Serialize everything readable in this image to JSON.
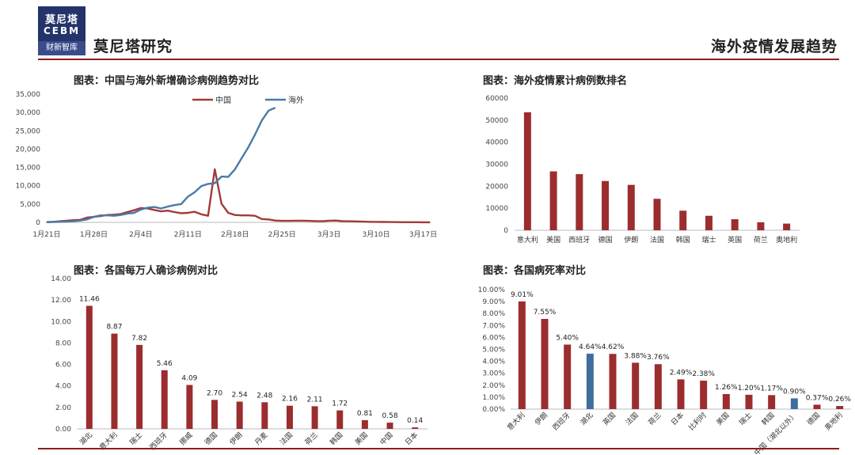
{
  "header": {
    "logo_line1": "莫尼塔",
    "logo_line2": "CEBM",
    "logo_line3": "财新智库",
    "brand": "莫尼塔研究",
    "page_title": "海外疫情发展趋势"
  },
  "colors": {
    "accent": "#8b1e1e",
    "bar": "#9b2d2f",
    "blue": "#3f6e9e",
    "logo_bg": "#24346a"
  },
  "chart_data": [
    {
      "type": "line",
      "title": "图表：中国与海外新增确诊病例趋势对比",
      "ylim": [
        0,
        35000
      ],
      "yticks": [
        "0",
        "5,000",
        "10,000",
        "15,000",
        "20,000",
        "25,000",
        "30,000",
        "35,000"
      ],
      "x_labels": [
        "1月21日",
        "1月28日",
        "2月4日",
        "2月11日",
        "2月18日",
        "2月25日",
        "3月3日",
        "3月10日",
        "3月17日"
      ],
      "series": [
        {
          "name": "中国",
          "color": "#a23a3a",
          "values": [
            80,
            150,
            300,
            450,
            600,
            700,
            1300,
            1500,
            1700,
            2000,
            2100,
            2300,
            2800,
            3300,
            3900,
            3800,
            3400,
            3000,
            3200,
            2800,
            2500,
            2600,
            2900,
            2200,
            1800,
            14500,
            5100,
            2600,
            2000,
            1900,
            1900,
            1800,
            900,
            800,
            500,
            400,
            400,
            450,
            450,
            400,
            350,
            300,
            450,
            500,
            350,
            300,
            250,
            200,
            150,
            120,
            100,
            80,
            60,
            40,
            50,
            40,
            30,
            30
          ]
        },
        {
          "name": "海外",
          "color": "#4a7aa8",
          "values": [
            50,
            100,
            150,
            200,
            300,
            500,
            800,
            1500,
            1900,
            1900,
            1800,
            2000,
            2400,
            2600,
            3500,
            4000,
            4200,
            3800,
            4300,
            4700,
            5000,
            7000,
            8200,
            9900,
            10500,
            10700,
            12500,
            12400,
            14500,
            17500,
            20500,
            24000,
            27800,
            30500,
            31300
          ]
        }
      ]
    },
    {
      "type": "bar",
      "title": "图表：海外疫情累计病例数排名",
      "categories": [
        "意大利",
        "美国",
        "西班牙",
        "德国",
        "伊朗",
        "法国",
        "韩国",
        "瑞士",
        "英国",
        "荷兰",
        "奥地利"
      ],
      "values": [
        53578,
        26747,
        25496,
        22364,
        20610,
        14296,
        8897,
        6575,
        5018,
        3631,
        3024
      ],
      "ylim": [
        0,
        60000
      ],
      "yticks": [
        "0",
        "10000",
        "20000",
        "30000",
        "40000",
        "50000",
        "60000"
      ]
    },
    {
      "type": "bar",
      "title": "图表：各国每万人确诊病例对比",
      "categories": [
        "湖北",
        "意大利",
        "瑞士",
        "西班牙",
        "挪威",
        "德国",
        "伊朗",
        "丹麦",
        "法国",
        "荷兰",
        "韩国",
        "美国",
        "中国",
        "日本"
      ],
      "values": [
        11.46,
        8.87,
        7.82,
        5.46,
        4.09,
        2.7,
        2.54,
        2.48,
        2.16,
        2.11,
        1.72,
        0.81,
        0.58,
        0.14
      ],
      "labels": [
        "11.46",
        "8.87",
        "7.82",
        "5.46",
        "4.09",
        "2.70",
        "2.54",
        "2.48",
        "2.16",
        "2.11",
        "1.72",
        "0.81",
        "0.58",
        "0.14"
      ],
      "ylim": [
        0,
        14
      ],
      "yticks": [
        "0.00",
        "2.00",
        "4.00",
        "6.00",
        "8.00",
        "10.00",
        "12.00",
        "14.00"
      ]
    },
    {
      "type": "bar",
      "title": "图表：各国病死率对比",
      "categories": [
        "意大利",
        "伊朗",
        "西班牙",
        "湖北",
        "英国",
        "法国",
        "荷兰",
        "日本",
        "比利时",
        "美国",
        "瑞士",
        "韩国",
        "中国（湖北以外）",
        "德国",
        "奥地利"
      ],
      "values": [
        9.01,
        7.55,
        5.4,
        4.64,
        4.62,
        3.88,
        3.76,
        2.49,
        2.38,
        1.26,
        1.2,
        1.17,
        0.9,
        0.37,
        0.26
      ],
      "labels": [
        "9.01%",
        "7.55%",
        "5.40%",
        "4.64%",
        "4.62%",
        "3.88%",
        "3.76%",
        "2.49%",
        "2.38%",
        "1.26%",
        "1.20%",
        "1.17%",
        "0.90%",
        "0.37%",
        "0.26%"
      ],
      "highlight": [
        "湖北",
        "中国（湖北以外）"
      ],
      "ylim": [
        0,
        10
      ],
      "yticks": [
        "0.00%",
        "1.00%",
        "2.00%",
        "3.00%",
        "4.00%",
        "5.00%",
        "6.00%",
        "7.00%",
        "8.00%",
        "9.00%",
        "10.00%"
      ]
    }
  ]
}
